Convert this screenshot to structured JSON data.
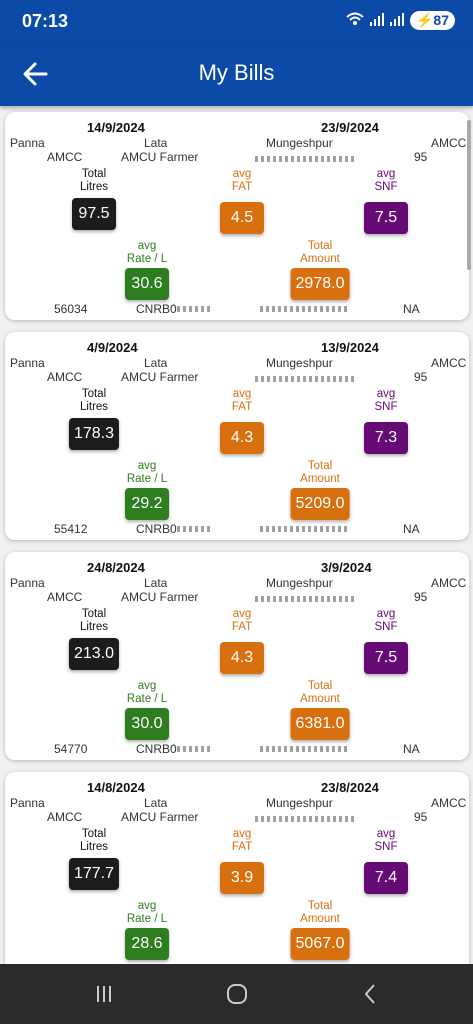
{
  "status": {
    "time": "07:13",
    "battery": "87"
  },
  "appbar": {
    "title": "My Bills"
  },
  "colors": {
    "primary": "#0b4aa6",
    "litres": "#1c1c1c",
    "fat": "#d9700f",
    "snf": "#660a75",
    "rate": "#2e7d1f",
    "amount": "#d9700f"
  },
  "labels": {
    "total_litres": [
      "Total",
      "Litres"
    ],
    "avg_fat": [
      "avg",
      "FAT"
    ],
    "avg_snf": [
      "avg",
      "SNF"
    ],
    "avg_rate": [
      "avg",
      "Rate / L"
    ],
    "total_amount": [
      "Total",
      "Amount"
    ]
  },
  "bills": [
    {
      "from": "14/9/2024",
      "to": "23/9/2024",
      "c1": "Panna",
      "c2": "Lata",
      "c3": "Mungeshpur",
      "c4": "AMCC",
      "r1": "AMCC",
      "r2": "AMCU Farmer",
      "r3": "95",
      "litres": "97.5",
      "fat": "4.5",
      "snf": "7.5",
      "rate": "30.6",
      "amount": "2978.0",
      "id": "56034",
      "code": "CNRB0",
      "na": "NA"
    },
    {
      "from": "4/9/2024",
      "to": "13/9/2024",
      "c1": "Panna",
      "c2": "Lata",
      "c3": "Mungeshpur",
      "c4": "AMCC",
      "r1": "AMCC",
      "r2": "AMCU Farmer",
      "r3": "95",
      "litres": "178.3",
      "fat": "4.3",
      "snf": "7.3",
      "rate": "29.2",
      "amount": "5209.0",
      "id": "55412",
      "code": "CNRB0",
      "na": "NA"
    },
    {
      "from": "24/8/2024",
      "to": "3/9/2024",
      "c1": "Panna",
      "c2": "Lata",
      "c3": "Mungeshpur",
      "c4": "AMCC",
      "r1": "AMCC",
      "r2": "AMCU Farmer",
      "r3": "95",
      "litres": "213.0",
      "fat": "4.3",
      "snf": "7.5",
      "rate": "30.0",
      "amount": "6381.0",
      "id": "54770",
      "code": "CNRB0",
      "na": "NA"
    },
    {
      "from": "14/8/2024",
      "to": "23/8/2024",
      "c1": "Panna",
      "c2": "Lata",
      "c3": "Mungeshpur",
      "c4": "AMCC",
      "r1": "AMCC",
      "r2": "AMCU Farmer",
      "r3": "95",
      "litres": "177.7",
      "fat": "3.9",
      "snf": "7.4",
      "rate": "28.6",
      "amount": "5067.0",
      "id": "",
      "code": "",
      "na": ""
    }
  ]
}
